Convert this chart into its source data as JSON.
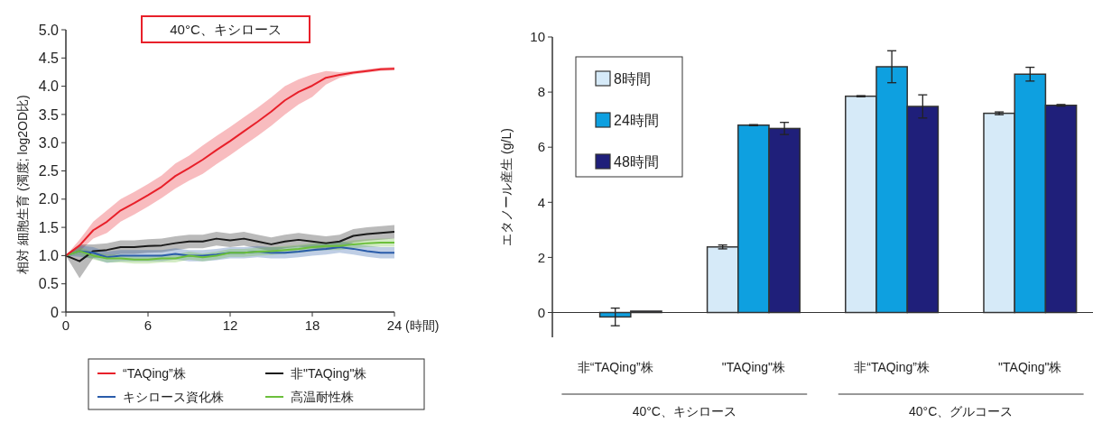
{
  "chart_data": [
    {
      "type": "line",
      "title": "40°C、キシロース",
      "xlabel": "(時間)",
      "ylabel": "相対 細胞生育 (濁度; log2OD比)",
      "legend": "bottom",
      "x": [
        0,
        1,
        2,
        3,
        4,
        5,
        6,
        7,
        8,
        9,
        10,
        11,
        12,
        13,
        14,
        15,
        16,
        17,
        18,
        19,
        20,
        21,
        22,
        23,
        24
      ],
      "xlim": [
        0,
        24
      ],
      "xticks": [
        0,
        6,
        12,
        18,
        24
      ],
      "ylim": [
        0,
        5
      ],
      "yticks": [
        0,
        0.5,
        {
          "value": 1,
          "label": "1.0"
        },
        1.5,
        {
          "value": 2,
          "label": "2.0"
        },
        2.5,
        {
          "value": 3,
          "label": "3.0"
        },
        3.5,
        {
          "value": 4,
          "label": "4.0"
        },
        4.5,
        {
          "value": 5,
          "label": "5.0"
        }
      ],
      "series": [
        {
          "name": "“TAQing”株",
          "color": "#e8202a",
          "values": [
            1.0,
            1.18,
            1.45,
            1.6,
            1.8,
            1.93,
            2.07,
            2.22,
            2.41,
            2.55,
            2.7,
            2.87,
            3.03,
            3.2,
            3.37,
            3.55,
            3.75,
            3.9,
            4.01,
            4.15,
            4.2,
            4.24,
            4.27,
            4.3,
            4.31
          ],
          "lower": [
            1.0,
            1.08,
            1.3,
            1.4,
            1.6,
            1.73,
            1.87,
            2.02,
            2.19,
            2.33,
            2.45,
            2.62,
            2.78,
            2.95,
            3.12,
            3.3,
            3.5,
            3.68,
            3.81,
            4.03,
            4.15,
            4.21,
            4.24,
            4.27,
            4.28
          ],
          "upper": [
            1.0,
            1.28,
            1.6,
            1.8,
            2.0,
            2.13,
            2.27,
            2.42,
            2.63,
            2.77,
            2.95,
            3.12,
            3.28,
            3.45,
            3.62,
            3.8,
            4.0,
            4.12,
            4.21,
            4.27,
            4.25,
            4.27,
            4.3,
            4.33,
            4.34
          ]
        },
        {
          "name": "非\"TAQing\"株",
          "color": "#1a1a1a",
          "values": [
            1.0,
            0.9,
            1.08,
            1.1,
            1.15,
            1.15,
            1.17,
            1.18,
            1.22,
            1.25,
            1.25,
            1.3,
            1.27,
            1.3,
            1.25,
            1.2,
            1.25,
            1.28,
            1.25,
            1.22,
            1.25,
            1.35,
            1.38,
            1.4,
            1.42
          ],
          "lower": [
            1.0,
            0.6,
            0.96,
            0.98,
            1.03,
            1.03,
            1.05,
            1.06,
            1.1,
            1.13,
            1.13,
            1.18,
            1.15,
            1.18,
            1.13,
            1.08,
            1.13,
            1.16,
            1.13,
            1.1,
            1.13,
            1.23,
            1.26,
            1.28,
            1.3
          ],
          "upper": [
            1.0,
            1.2,
            1.2,
            1.22,
            1.27,
            1.27,
            1.29,
            1.3,
            1.34,
            1.37,
            1.37,
            1.42,
            1.39,
            1.42,
            1.37,
            1.32,
            1.37,
            1.4,
            1.37,
            1.34,
            1.37,
            1.47,
            1.5,
            1.52,
            1.54
          ]
        },
        {
          "name": "キシロース資化株",
          "color": "#2a5caa",
          "values": [
            1.0,
            1.08,
            1.05,
            0.97,
            1.0,
            1.0,
            1.0,
            1.0,
            1.03,
            1.0,
            1.0,
            1.02,
            1.05,
            1.05,
            1.07,
            1.05,
            1.05,
            1.07,
            1.1,
            1.12,
            1.15,
            1.12,
            1.08,
            1.05,
            1.05
          ],
          "lower": [
            1.0,
            0.98,
            0.95,
            0.87,
            0.9,
            0.9,
            0.9,
            0.9,
            0.93,
            0.9,
            0.9,
            0.92,
            0.95,
            0.95,
            0.97,
            0.95,
            0.95,
            0.97,
            1.0,
            1.02,
            1.05,
            1.02,
            0.98,
            0.95,
            0.95
          ],
          "upper": [
            1.0,
            1.18,
            1.15,
            1.07,
            1.1,
            1.1,
            1.1,
            1.1,
            1.13,
            1.1,
            1.1,
            1.12,
            1.15,
            1.15,
            1.17,
            1.15,
            1.15,
            1.17,
            1.2,
            1.22,
            1.25,
            1.22,
            1.18,
            1.15,
            1.15
          ]
        },
        {
          "name": "高温耐性株",
          "color": "#6cbf3c",
          "values": [
            1.0,
            1.08,
            1.0,
            0.95,
            0.95,
            0.93,
            0.93,
            0.95,
            0.95,
            1.0,
            0.97,
            1.0,
            1.05,
            1.05,
            1.07,
            1.08,
            1.1,
            1.12,
            1.15,
            1.17,
            1.17,
            1.2,
            1.22,
            1.23,
            1.23
          ],
          "lower": [
            1.0,
            1.01,
            0.93,
            0.88,
            0.88,
            0.86,
            0.86,
            0.88,
            0.88,
            0.93,
            0.9,
            0.93,
            0.98,
            0.98,
            1.0,
            1.01,
            1.03,
            1.05,
            1.08,
            1.1,
            1.1,
            1.13,
            1.15,
            1.16,
            1.16
          ],
          "upper": [
            1.0,
            1.15,
            1.07,
            1.02,
            1.02,
            1.0,
            1.0,
            1.02,
            1.02,
            1.07,
            1.04,
            1.07,
            1.12,
            1.12,
            1.14,
            1.15,
            1.17,
            1.19,
            1.22,
            1.24,
            1.24,
            1.27,
            1.29,
            1.3,
            1.3
          ]
        }
      ]
    },
    {
      "type": "bar",
      "ylabel": "エタノール産生 (g/L)",
      "legend": "top left",
      "categories": [
        "非“TAQing”株",
        "\"TAQing\"株",
        "非“TAQing”株",
        "\"TAQing\"株"
      ],
      "ylim": [
        -0.9,
        10
      ],
      "yticks": [
        0,
        2,
        4,
        6,
        8,
        10
      ],
      "annotations": [
        "40°C、キシロース",
        "40°C、グルコース"
      ],
      "series": [
        {
          "name": "8時間",
          "color": "#d6eaf8",
          "values": [
            null,
            2.38,
            7.85,
            7.23
          ],
          "errors": [
            null,
            0.07,
            0.02,
            0.05
          ]
        },
        {
          "name": "24時間",
          "color": "#0ea0e0",
          "values": [
            -0.16,
            6.8,
            8.92,
            8.65
          ],
          "errors": [
            0.32,
            0.02,
            0.58,
            0.25
          ]
        },
        {
          "name": "48時間",
          "color": "#1f1f7a",
          "values": [
            0.05,
            6.68,
            7.48,
            7.52
          ],
          "errors": [
            null,
            0.22,
            0.42,
            0.03
          ]
        }
      ]
    }
  ]
}
